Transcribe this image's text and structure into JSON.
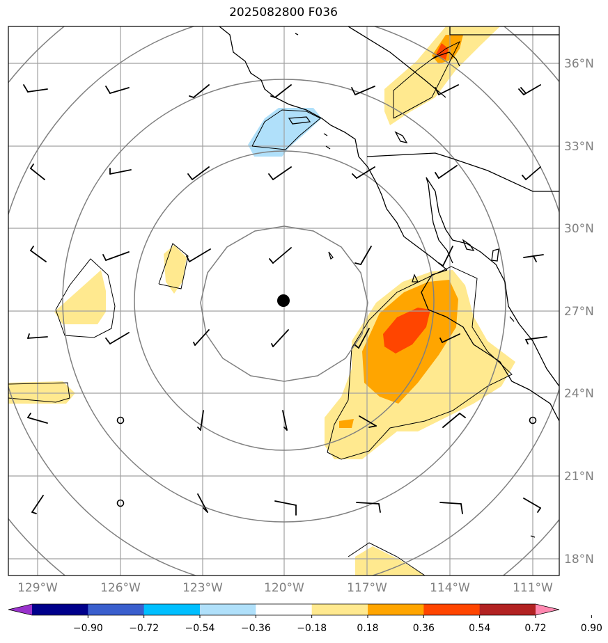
{
  "title": "2025082800 F036",
  "map": {
    "lat_labels": [
      "36°N",
      "33°N",
      "30°N",
      "27°N",
      "24°N",
      "21°N",
      "18°N"
    ],
    "lon_labels": [
      "129°W",
      "126°W",
      "123°W",
      "120°W",
      "117°W",
      "114°W",
      "111°W"
    ],
    "lat_values": [
      36,
      33,
      30,
      27,
      24,
      21,
      18
    ],
    "lon_values": [
      -129,
      -126,
      -123,
      -120,
      -117,
      -114,
      -111
    ],
    "center_marker": {
      "lon": -120,
      "lat": 27.4
    },
    "range_rings": 5,
    "gridline_color": "#a0a0a0",
    "ring_color": "#808080",
    "coastline_color": "#000000"
  },
  "colorbar": {
    "ticks": [
      "−0.90",
      "−0.72",
      "−0.54",
      "−0.36",
      "−0.18",
      "0.18",
      "0.36",
      "0.54",
      "0.72",
      "0.90"
    ],
    "colors": [
      "#9932cc",
      "#00008b",
      "#3a5fcd",
      "#00bfff",
      "#b0e0fa",
      "#ffffff",
      "#ffe98f",
      "#ffa500",
      "#ff4500",
      "#b22222",
      "#ff88b0"
    ],
    "extend": "both"
  }
}
